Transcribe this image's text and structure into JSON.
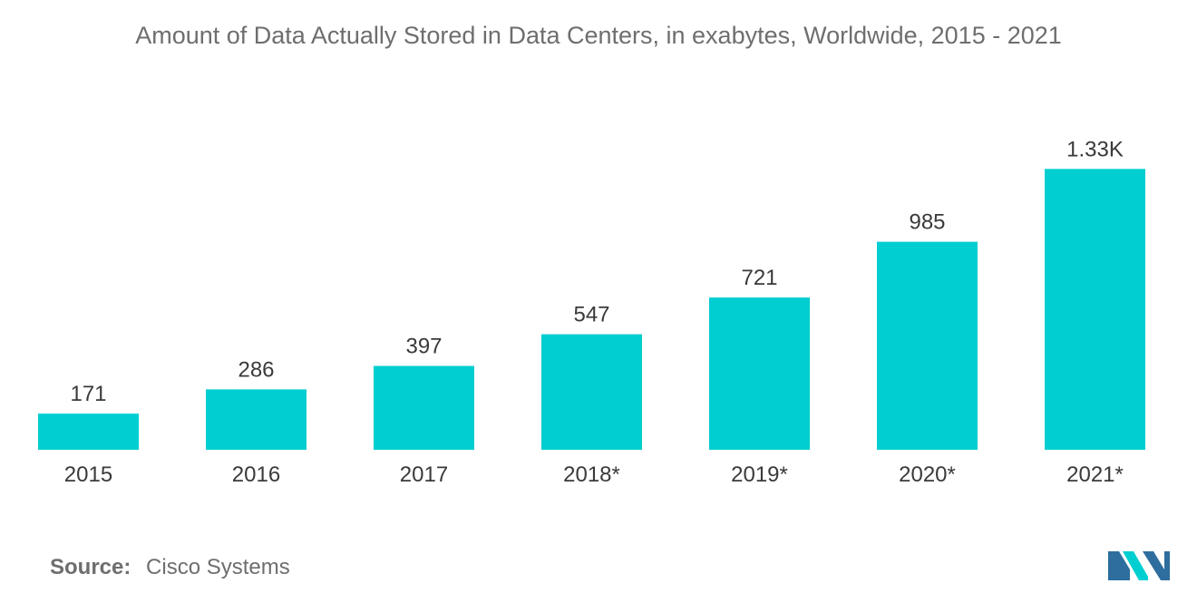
{
  "chart_data": {
    "type": "bar",
    "title": "Amount of Data Actually Stored in Data Centers, in exabytes, Worldwide, 2015 - 2021",
    "categories": [
      "2015",
      "2016",
      "2017",
      "2018*",
      "2019*",
      "2020*",
      "2021*"
    ],
    "values": [
      171,
      286,
      397,
      547,
      721,
      985,
      1330
    ],
    "value_labels": [
      "171",
      "286",
      "397",
      "547",
      "721",
      "985",
      "1.33K"
    ],
    "xlabel": "",
    "ylabel": "",
    "ylim": [
      0,
      1400
    ],
    "grid": false,
    "legend": "none",
    "bar_color": "#00CED1"
  },
  "source": {
    "label": "Source:",
    "value": "Cisco Systems"
  },
  "logo": {
    "icon": "mordor-intelligence-logo-icon",
    "colors": [
      "#2d6e9e",
      "#00CED1"
    ]
  }
}
